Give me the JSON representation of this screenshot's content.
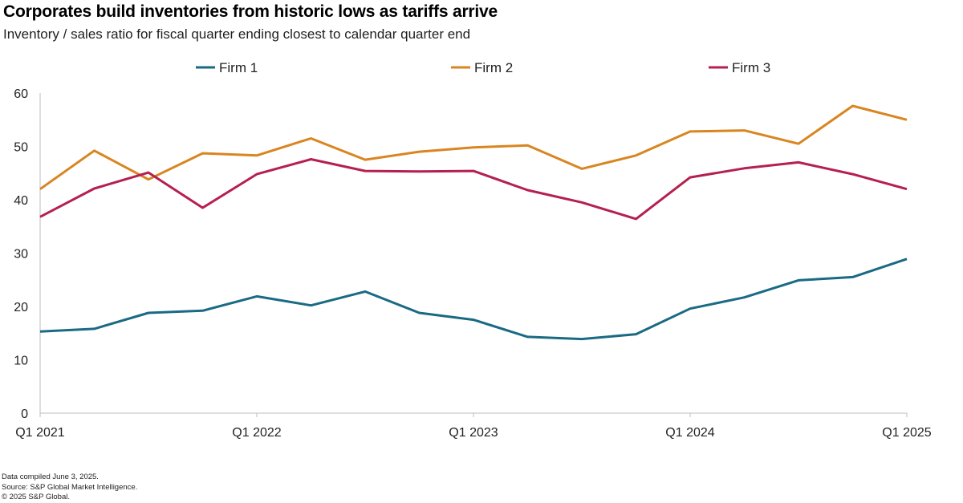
{
  "header": {
    "title": "Corporates build inventories from historic lows as tariffs arrive",
    "subtitle": "Inventory / sales ratio for fiscal quarter ending closest to calendar quarter end"
  },
  "footer": {
    "line1": "Data compiled June 3, 2025.",
    "line2": "Source: S&P Global Market Intelligence.",
    "line3": "© 2025 S&P Global."
  },
  "chart_data": {
    "type": "line",
    "title": "Corporates build inventories from historic lows as tariffs arrive",
    "subtitle": "Inventory / sales ratio for fiscal quarter ending closest to calendar quarter end",
    "xlabel": "",
    "ylabel": "",
    "ylim": [
      0,
      60
    ],
    "yticks": [
      0,
      10,
      20,
      30,
      40,
      50,
      60
    ],
    "grid": false,
    "legend_position": "top",
    "x": [
      "Q1 2021",
      "Q2 2021",
      "Q3 2021",
      "Q4 2021",
      "Q1 2022",
      "Q2 2022",
      "Q3 2022",
      "Q4 2022",
      "Q1 2023",
      "Q2 2023",
      "Q3 2023",
      "Q4 2023",
      "Q1 2024",
      "Q2 2024",
      "Q3 2024",
      "Q4 2024",
      "Q1 2025"
    ],
    "xtick_labels": [
      {
        "index": 0,
        "label": "Q1 2021"
      },
      {
        "index": 4,
        "label": "Q1 2022"
      },
      {
        "index": 8,
        "label": "Q1 2023"
      },
      {
        "index": 12,
        "label": "Q1 2024"
      },
      {
        "index": 16,
        "label": "Q1 2025"
      }
    ],
    "series": [
      {
        "name": "Firm 1",
        "color": "#1a6a84",
        "values": [
          15.3,
          15.8,
          18.8,
          19.2,
          21.9,
          20.2,
          22.8,
          18.8,
          17.5,
          14.3,
          13.9,
          14.8,
          19.6,
          21.7,
          24.9,
          25.5,
          28.9
        ]
      },
      {
        "name": "Firm 2",
        "color": "#d98520",
        "values": [
          42.0,
          49.2,
          43.8,
          48.7,
          48.3,
          51.5,
          47.5,
          49.0,
          49.8,
          50.2,
          45.8,
          48.3,
          52.8,
          53.0,
          50.5,
          57.6,
          55.0
        ]
      },
      {
        "name": "Firm 3",
        "color": "#b5204f",
        "values": [
          36.8,
          42.1,
          45.1,
          38.5,
          44.8,
          47.6,
          45.4,
          45.3,
          45.4,
          41.8,
          39.5,
          36.4,
          44.2,
          45.9,
          47.0,
          44.8,
          42.0
        ]
      }
    ]
  }
}
